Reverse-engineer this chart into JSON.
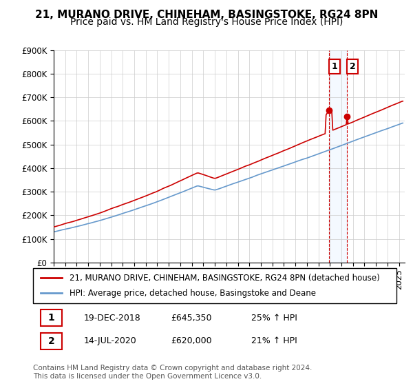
{
  "title": "21, MURANO DRIVE, CHINEHAM, BASINGSTOKE, RG24 8PN",
  "subtitle": "Price paid vs. HM Land Registry's House Price Index (HPI)",
  "ylabel": "",
  "ylim": [
    0,
    900000
  ],
  "yticks": [
    0,
    100000,
    200000,
    300000,
    400000,
    500000,
    600000,
    700000,
    800000,
    900000
  ],
  "ytick_labels": [
    "£0",
    "£100K",
    "£200K",
    "£300K",
    "£400K",
    "£500K",
    "£600K",
    "£700K",
    "£800K",
    "£900K"
  ],
  "red_color": "#cc0000",
  "blue_color": "#6699cc",
  "marker1_date_idx": 287,
  "marker1_value": 645350,
  "marker1_label": "1",
  "marker2_date_idx": 306,
  "marker2_value": 620000,
  "marker2_label": "2",
  "legend_line1": "21, MURANO DRIVE, CHINEHAM, BASINGSTOKE, RG24 8PN (detached house)",
  "legend_line2": "HPI: Average price, detached house, Basingstoke and Deane",
  "table_row1": [
    "1",
    "19-DEC-2018",
    "£645,350",
    "25% ↑ HPI"
  ],
  "table_row2": [
    "2",
    "14-JUL-2020",
    "£620,000",
    "21% ↑ HPI"
  ],
  "footnote": "Contains HM Land Registry data © Crown copyright and database right 2024.\nThis data is licensed under the Open Government Licence v3.0.",
  "dashed_line_color": "#cc0000",
  "shade_color": "#ddeeff",
  "title_fontsize": 11,
  "subtitle_fontsize": 10,
  "tick_fontsize": 8.5,
  "legend_fontsize": 8.5,
  "table_fontsize": 9
}
